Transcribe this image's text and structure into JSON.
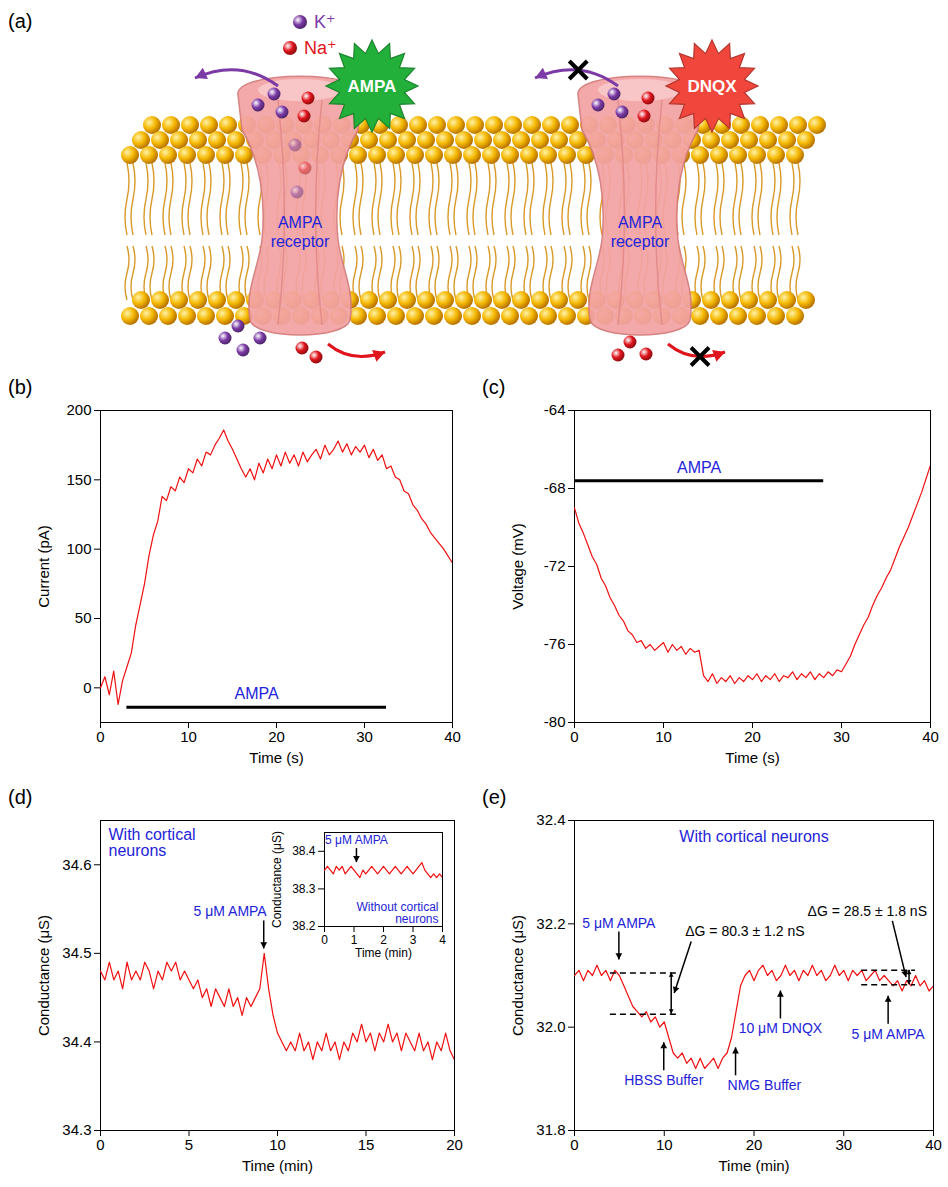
{
  "diagram": {
    "panel": "(a)",
    "ion_key": [
      {
        "label": "K⁺",
        "color": "#7b3aa6"
      },
      {
        "label": "Na⁺",
        "color": "#e0141c"
      }
    ],
    "receptors": [
      {
        "label": "AMPA receptor",
        "ligand": "AMPA",
        "ligand_color": "#22b03a",
        "ions_pass": true
      },
      {
        "label": "AMPA receptor",
        "ligand": "DNQX",
        "ligand_color": "#f0463c",
        "ions_pass": false
      }
    ]
  },
  "chart_data": [
    {
      "panel": "(b)",
      "type": "line",
      "color": "#f01010",
      "xlabel": "Time (s)",
      "ylabel": "Current (pA)",
      "xlim": [
        0,
        40
      ],
      "xticks": [
        0,
        10,
        20,
        30,
        40
      ],
      "ylim": [
        -25,
        200
      ],
      "yticks": [
        0,
        50,
        100,
        150,
        200
      ],
      "x": [
        0,
        0.5,
        1,
        1.5,
        2,
        2.5,
        3,
        3.5,
        4,
        4.5,
        5,
        5.5,
        6,
        6.5,
        7,
        7.5,
        8,
        8.5,
        9,
        9.5,
        10,
        10.5,
        11,
        11.5,
        12,
        12.5,
        13,
        13.5,
        14,
        14.5,
        15,
        15.5,
        16,
        16.5,
        17,
        17.5,
        18,
        18.5,
        19,
        19.5,
        20,
        20.5,
        21,
        21.5,
        22,
        22.5,
        23,
        23.5,
        24,
        24.5,
        25,
        25.5,
        26,
        26.5,
        27,
        27.5,
        28,
        28.5,
        29,
        29.5,
        30,
        30.5,
        31,
        31.5,
        32,
        32.5,
        33,
        33.5,
        34,
        34.5,
        35,
        35.5,
        36,
        36.5,
        37,
        37.5,
        38,
        38.5,
        39,
        39.5,
        40
      ],
      "values": [
        0,
        8,
        -5,
        12,
        -12,
        5,
        15,
        25,
        45,
        60,
        75,
        95,
        110,
        120,
        138,
        135,
        145,
        142,
        152,
        148,
        158,
        155,
        165,
        160,
        170,
        168,
        175,
        180,
        186,
        178,
        172,
        165,
        158,
        152,
        158,
        150,
        162,
        155,
        165,
        158,
        168,
        160,
        170,
        162,
        168,
        160,
        170,
        163,
        168,
        172,
        165,
        175,
        168,
        172,
        178,
        170,
        176,
        168,
        174,
        170,
        175,
        166,
        172,
        164,
        168,
        158,
        160,
        152,
        150,
        142,
        140,
        132,
        128,
        122,
        118,
        112,
        108,
        104,
        100,
        95,
        90
      ],
      "treatment": {
        "text": "AMPA",
        "x_start": 3,
        "x_end": 32.5,
        "y": -14
      }
    },
    {
      "panel": "(c)",
      "type": "line",
      "color": "#f01010",
      "xlabel": "Time (s)",
      "ylabel": "Voltage (mV)",
      "xlim": [
        0,
        40
      ],
      "xticks": [
        0,
        10,
        20,
        30,
        40
      ],
      "ylim": [
        -80,
        -64
      ],
      "yticks": [
        -80,
        -76,
        -72,
        -68,
        -64
      ],
      "x": [
        0,
        0.5,
        1,
        1.5,
        2,
        2.5,
        3,
        3.5,
        4,
        4.5,
        5,
        5.5,
        6,
        6.5,
        7,
        7.5,
        8,
        8.5,
        9,
        9.5,
        10,
        10.5,
        11,
        11.5,
        12,
        12.5,
        13,
        13.5,
        14,
        14.5,
        15,
        15.5,
        16,
        16.5,
        17,
        17.5,
        18,
        18.5,
        19,
        19.5,
        20,
        20.5,
        21,
        21.5,
        22,
        22.5,
        23,
        23.5,
        24,
        24.5,
        25,
        25.5,
        26,
        26.5,
        27,
        27.5,
        28,
        28.5,
        29,
        29.5,
        30,
        30.5,
        31,
        31.5,
        32,
        32.5,
        33,
        33.5,
        34,
        34.5,
        35,
        35.5,
        36,
        36.5,
        37,
        37.5,
        38,
        38.5,
        39,
        39.5,
        40
      ],
      "values": [
        -69,
        -69.8,
        -70.3,
        -70.9,
        -71.5,
        -71.9,
        -72.6,
        -73,
        -73.6,
        -74,
        -74.5,
        -74.8,
        -75.3,
        -75.5,
        -75.9,
        -75.8,
        -76.2,
        -76,
        -76.3,
        -76.1,
        -75.9,
        -76.4,
        -76,
        -76.3,
        -76.1,
        -76.5,
        -76.2,
        -76.4,
        -76.3,
        -77.6,
        -77.9,
        -77.5,
        -78,
        -77.7,
        -77.9,
        -77.6,
        -78,
        -77.7,
        -77.9,
        -77.6,
        -77.8,
        -77.5,
        -77.9,
        -77.6,
        -77.8,
        -77.5,
        -77.9,
        -77.6,
        -77.7,
        -77.4,
        -77.8,
        -77.5,
        -77.7,
        -77.4,
        -77.8,
        -77.5,
        -77.7,
        -77.4,
        -77.6,
        -77.3,
        -77.4,
        -77,
        -76.6,
        -76,
        -75.5,
        -75,
        -74.6,
        -74,
        -73.5,
        -73.1,
        -72.6,
        -72.2,
        -71.6,
        -71,
        -70.5,
        -70,
        -69.4,
        -68.8,
        -68.2,
        -67.5,
        -66.8
      ],
      "treatment": {
        "text": "AMPA",
        "x_start": 0,
        "x_end": 28,
        "y": -67.6
      }
    },
    {
      "panel": "(d)",
      "type": "line",
      "color": "#f01010",
      "title": "With cortical neurons",
      "xlabel": "Time (min)",
      "ylabel": "Conductance (μS)",
      "xlim": [
        0,
        20
      ],
      "xticks": [
        0,
        5,
        10,
        15,
        20
      ],
      "ylim": [
        34.3,
        34.65
      ],
      "yticks": [
        34.3,
        34.4,
        34.5,
        34.6
      ],
      "x": [
        0,
        0.25,
        0.5,
        0.75,
        1,
        1.25,
        1.5,
        1.75,
        2,
        2.25,
        2.5,
        2.75,
        3,
        3.25,
        3.5,
        3.75,
        4,
        4.25,
        4.5,
        4.75,
        5,
        5.25,
        5.5,
        5.75,
        6,
        6.25,
        6.5,
        6.75,
        7,
        7.25,
        7.5,
        7.75,
        8,
        8.25,
        8.5,
        8.75,
        9,
        9.25,
        9.5,
        9.75,
        10,
        10.25,
        10.5,
        10.75,
        11,
        11.25,
        11.5,
        11.75,
        12,
        12.25,
        12.5,
        12.75,
        13,
        13.25,
        13.5,
        13.75,
        14,
        14.25,
        14.5,
        14.75,
        15,
        15.25,
        15.5,
        15.75,
        16,
        16.25,
        16.5,
        16.75,
        17,
        17.25,
        17.5,
        17.75,
        18,
        18.25,
        18.5,
        18.75,
        19,
        19.25,
        19.5,
        19.75,
        20
      ],
      "values": [
        34.48,
        34.47,
        34.49,
        34.47,
        34.48,
        34.46,
        34.49,
        34.47,
        34.48,
        34.47,
        34.49,
        34.48,
        34.46,
        34.48,
        34.47,
        34.49,
        34.48,
        34.49,
        34.47,
        34.48,
        34.47,
        34.46,
        34.47,
        34.45,
        34.46,
        34.44,
        34.46,
        34.45,
        34.44,
        34.46,
        34.44,
        34.45,
        34.43,
        34.45,
        34.44,
        34.45,
        34.46,
        34.5,
        34.46,
        34.43,
        34.41,
        34.4,
        34.39,
        34.4,
        34.39,
        34.41,
        34.39,
        34.4,
        34.38,
        34.4,
        34.39,
        34.41,
        34.39,
        34.4,
        34.38,
        34.4,
        34.39,
        34.41,
        34.4,
        34.42,
        34.4,
        34.41,
        34.39,
        34.41,
        34.4,
        34.42,
        34.4,
        34.41,
        34.39,
        34.41,
        34.4,
        34.39,
        34.41,
        34.39,
        34.4,
        34.38,
        34.4,
        34.39,
        34.41,
        34.39,
        34.38
      ],
      "annotations": [
        {
          "text": "5 μM AMPA",
          "x": 9.25,
          "y": 34.505,
          "position": "above",
          "align": "right"
        }
      ],
      "inset": {
        "type": "line",
        "color": "#f01010",
        "title": "Without cortical neurons",
        "xlabel": "Time (min)",
        "ylabel": "Conductance (μS)",
        "xlim": [
          0,
          4
        ],
        "xticks": [
          0,
          1,
          2,
          3,
          4
        ],
        "ylim": [
          38.2,
          38.45
        ],
        "yticks": [
          38.2,
          38.3,
          38.4
        ],
        "x": [
          0,
          0.1,
          0.2,
          0.3,
          0.4,
          0.5,
          0.6,
          0.7,
          0.8,
          0.9,
          1,
          1.1,
          1.2,
          1.3,
          1.4,
          1.5,
          1.6,
          1.7,
          1.8,
          1.9,
          2,
          2.1,
          2.2,
          2.3,
          2.4,
          2.5,
          2.6,
          2.7,
          2.8,
          2.9,
          3,
          3.1,
          3.2,
          3.3,
          3.4,
          3.5,
          3.6,
          3.7,
          3.8,
          3.9,
          4
        ],
        "values": [
          38.35,
          38.36,
          38.35,
          38.34,
          38.36,
          38.35,
          38.36,
          38.34,
          38.35,
          38.36,
          38.35,
          38.34,
          38.33,
          38.35,
          38.34,
          38.35,
          38.36,
          38.35,
          38.34,
          38.35,
          38.36,
          38.35,
          38.34,
          38.35,
          38.36,
          38.35,
          38.34,
          38.35,
          38.36,
          38.35,
          38.34,
          38.35,
          38.36,
          38.37,
          38.35,
          38.34,
          38.33,
          38.34,
          38.33,
          38.34,
          38.33
        ],
        "annotations": [
          {
            "text": "5 μM AMPA",
            "x": 1.1,
            "y": 38.37,
            "position": "above",
            "align": "center"
          }
        ]
      }
    },
    {
      "panel": "(e)",
      "type": "line",
      "color": "#f01010",
      "title": "With cortical neurons",
      "xlabel": "Time (min)",
      "ylabel": "Conductance (μS)",
      "xlim": [
        0,
        40
      ],
      "xticks": [
        0,
        10,
        20,
        30,
        40
      ],
      "ylim": [
        31.8,
        32.4
      ],
      "yticks": [
        31.8,
        {
          "value": 32,
          "label": "32.0"
        },
        32.2,
        32.4
      ],
      "x": [
        0,
        0.5,
        1,
        1.5,
        2,
        2.5,
        3,
        3.5,
        4,
        4.5,
        5,
        5.5,
        6,
        6.5,
        7,
        7.5,
        8,
        8.5,
        9,
        9.5,
        10,
        10.5,
        11,
        11.5,
        12,
        12.5,
        13,
        13.5,
        14,
        14.5,
        15,
        15.5,
        16,
        16.5,
        17,
        17.5,
        18,
        18.5,
        19,
        19.5,
        20,
        20.5,
        21,
        21.5,
        22,
        22.5,
        23,
        23.5,
        24,
        24.5,
        25,
        25.5,
        26,
        26.5,
        27,
        27.5,
        28,
        28.5,
        29,
        29.5,
        30,
        30.5,
        31,
        31.5,
        32,
        32.5,
        33,
        33.5,
        34,
        34.5,
        35,
        35.5,
        36,
        36.5,
        37,
        37.5,
        38,
        38.5,
        39,
        39.5,
        40
      ],
      "values": [
        32.1,
        32.11,
        32.09,
        32.11,
        32.1,
        32.12,
        32.1,
        32.11,
        32.09,
        32.11,
        32.1,
        32.08,
        32.06,
        32.04,
        32.03,
        32.02,
        32.03,
        32.01,
        32.02,
        32,
        32.01,
        31.98,
        31.95,
        31.94,
        31.95,
        31.93,
        31.94,
        31.92,
        31.94,
        31.92,
        31.93,
        31.94,
        31.92,
        31.94,
        31.95,
        31.98,
        32.03,
        32.08,
        32.1,
        32.11,
        32.09,
        32.11,
        32.12,
        32.1,
        32.11,
        32.09,
        32.1,
        32.12,
        32.1,
        32.11,
        32.09,
        32.11,
        32.1,
        32.12,
        32.1,
        32.11,
        32.09,
        32.1,
        32.12,
        32.1,
        32.11,
        32.09,
        32.11,
        32.1,
        32.11,
        32.09,
        32.1,
        32.11,
        32.09,
        32.1,
        32.09,
        32.08,
        32.09,
        32.07,
        32.09,
        32.08,
        32.1,
        32.08,
        32.09,
        32.07,
        32.08
      ],
      "annotations": [
        {
          "text": "5 μM AMPA",
          "x": 5,
          "y": 32.13,
          "position": "above",
          "align": "center"
        },
        {
          "text": "HBSS Buffer",
          "x": 10,
          "y": 31.97,
          "position": "below",
          "align": "center"
        },
        {
          "text": "NMG Buffer",
          "x": 18,
          "y": 31.96,
          "position": "below",
          "align": "left"
        },
        {
          "text": "10 μM DNQX",
          "x": 23,
          "y": 32.07,
          "position": "below",
          "align": "center"
        },
        {
          "text": "5 μM AMPA",
          "x": 35,
          "y": 32.06,
          "position": "below",
          "align": "center"
        }
      ],
      "delta_g": [
        {
          "text": "ΔG = 80.3 ± 1.2 nS",
          "y_from": 32.105,
          "y_to": 32.025,
          "x_start": 4,
          "x_end": 11.5
        },
        {
          "text": "ΔG = 28.5 ± 1.8 nS",
          "y_from": 32.11,
          "y_to": 32.082,
          "x_start": 32,
          "x_end": 38
        }
      ]
    }
  ]
}
